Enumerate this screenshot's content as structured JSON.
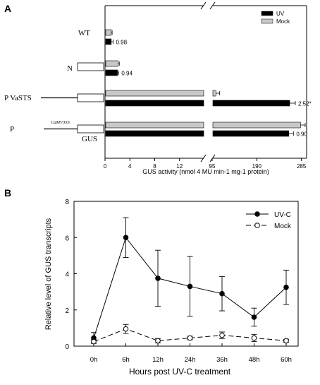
{
  "panels": {
    "a": {
      "letter": "A"
    },
    "b": {
      "letter": "B"
    }
  },
  "chart_data": [
    {
      "panel": "A",
      "type": "bar",
      "orientation": "horizontal",
      "xlabel": "GUS activity (nmol 4 MU min-1 mg-1 protein)",
      "broken_axis": true,
      "segments": [
        {
          "range": [
            0,
            16
          ],
          "ticks": [
            "0",
            "4",
            "8",
            "12"
          ]
        },
        {
          "range": [
            95,
            290
          ],
          "ticks": [
            "95",
            "190",
            "285"
          ]
        }
      ],
      "legend": {
        "position": "top-right",
        "entries": [
          "UV",
          "Mock"
        ]
      },
      "series_colors": {
        "UV": "#000000",
        "Mock": "#c8c8c8"
      },
      "constructs": [
        {
          "label": "WT",
          "uv": 1.0,
          "uv_err": 0.3,
          "mock": 1.0,
          "mock_err": 0.15,
          "ratio": "0.98"
        },
        {
          "label": "N",
          "uv": 2.0,
          "uv_err": 0.2,
          "mock": 2.1,
          "mock_err": 0.2,
          "ratio": "0.94"
        },
        {
          "label": "P VaSTS",
          "uv": 260,
          "uv_err": 12,
          "mock": 103,
          "mock_err": 8,
          "ratio": "2.52*"
        },
        {
          "label": "P",
          "promoter_label": "CaMV35S",
          "sub_label": "GUS",
          "uv": 258,
          "uv_err": 10,
          "mock": 283,
          "mock_err": 10,
          "ratio": "0.90"
        }
      ]
    },
    {
      "panel": "B",
      "type": "line",
      "xlabel": "Hours post UV-C treatment",
      "ylabel": "Relative level of GUS transcripts",
      "ylim": [
        0,
        8
      ],
      "yticks": [
        "0",
        "2",
        "4",
        "6",
        "8"
      ],
      "categories": [
        "0h",
        "6h",
        "12h",
        "24h",
        "36h",
        "48h",
        "60h"
      ],
      "legend": {
        "position": "top-right"
      },
      "series": [
        {
          "name": "UV-C",
          "style": "solid",
          "marker": "filled-circle",
          "values": [
            0.45,
            6.0,
            3.75,
            3.3,
            2.9,
            1.6,
            3.25
          ],
          "errors": [
            0.3,
            1.1,
            1.55,
            1.65,
            0.95,
            0.5,
            0.95
          ]
        },
        {
          "name": "Mock",
          "style": "dashed",
          "marker": "open-circle",
          "values": [
            0.25,
            0.95,
            0.3,
            0.45,
            0.6,
            0.45,
            0.3
          ],
          "errors": [
            0.1,
            0.25,
            0.12,
            0.1,
            0.18,
            0.2,
            0.08
          ]
        }
      ]
    }
  ]
}
